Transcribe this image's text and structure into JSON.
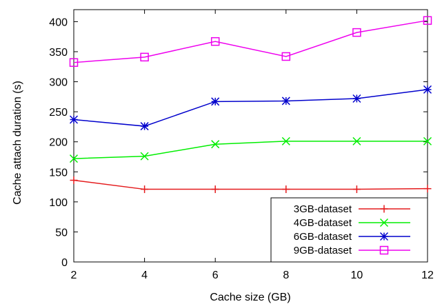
{
  "chart_data": {
    "type": "line",
    "title": "",
    "xlabel": "Cache size (GB)",
    "ylabel": "Cache attach duration (s)",
    "x": [
      2,
      4,
      6,
      8,
      10,
      12
    ],
    "xlim": [
      2,
      12
    ],
    "ylim": [
      0,
      420
    ],
    "xticks": [
      "2",
      "4",
      "6",
      "8",
      "10",
      "12"
    ],
    "yticks": [
      "0",
      "50",
      "100",
      "150",
      "200",
      "250",
      "300",
      "350",
      "400"
    ],
    "grid": false,
    "legend_position": "bottom-right",
    "series": [
      {
        "name": "3GB-dataset",
        "marker": "plus",
        "color": "#e41a1c",
        "values": [
          136,
          121,
          121,
          121,
          121,
          122
        ]
      },
      {
        "name": "4GB-dataset",
        "marker": "x",
        "color": "#00ee00",
        "values": [
          172,
          176,
          196,
          201,
          201,
          201
        ]
      },
      {
        "name": "6GB-dataset",
        "marker": "asterisk",
        "color": "#0000cc",
        "values": [
          237,
          226,
          267,
          268,
          272,
          287
        ]
      },
      {
        "name": "9GB-dataset",
        "marker": "square",
        "color": "#ee00ee",
        "values": [
          332,
          341,
          367,
          342,
          382,
          402
        ]
      }
    ]
  }
}
